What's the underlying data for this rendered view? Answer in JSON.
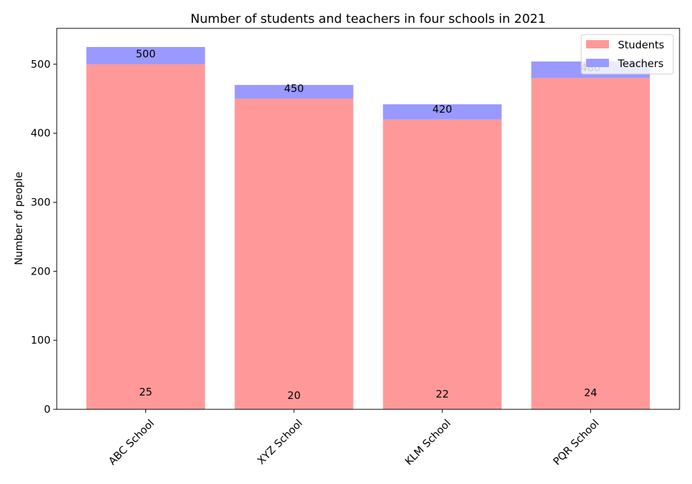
{
  "chart_data": {
    "type": "bar",
    "stacked": true,
    "title": "Number of students and teachers in four schools in 2021",
    "xlabel": "",
    "ylabel": "Number of people",
    "categories": [
      "ABC School",
      "XYZ School",
      "KLM School",
      "PQR School"
    ],
    "series": [
      {
        "name": "Students",
        "values": [
          500,
          450,
          420,
          480
        ],
        "color": "#ff9999"
      },
      {
        "name": "Teachers",
        "values": [
          25,
          20,
          22,
          24
        ],
        "color": "#9999ff"
      }
    ],
    "ylim": [
      0,
      552
    ],
    "yticks": [
      0,
      100,
      200,
      300,
      400,
      500
    ],
    "legend": "top-right",
    "grid": false
  }
}
